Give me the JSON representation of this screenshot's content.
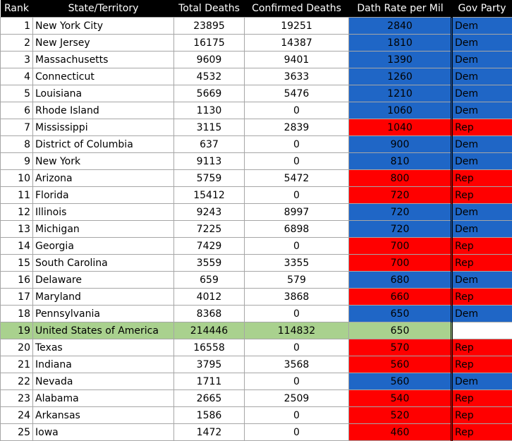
{
  "headers": [
    "Rank",
    "State/Territory",
    "Total Deaths",
    "Confirmed Deaths",
    "Dath Rate per Mil",
    "Gov Party"
  ],
  "rows": [
    {
      "rank": "1",
      "state": "New York City",
      "total": "23895",
      "confirmed": "19251",
      "rate": "2840",
      "party": "Dem"
    },
    {
      "rank": "2",
      "state": "New Jersey",
      "total": "16175",
      "confirmed": "14387",
      "rate": "1810",
      "party": "Dem"
    },
    {
      "rank": "3",
      "state": "Massachusetts",
      "total": "9609",
      "confirmed": "9401",
      "rate": "1390",
      "party": "Dem"
    },
    {
      "rank": "4",
      "state": "Connecticut",
      "total": "4532",
      "confirmed": "3633",
      "rate": "1260",
      "party": "Dem"
    },
    {
      "rank": "5",
      "state": "Louisiana",
      "total": "5669",
      "confirmed": "5476",
      "rate": "1210",
      "party": "Dem"
    },
    {
      "rank": "6",
      "state": "Rhode Island",
      "total": "1130",
      "confirmed": "0",
      "rate": "1060",
      "party": "Dem"
    },
    {
      "rank": "7",
      "state": "Mississippi",
      "total": "3115",
      "confirmed": "2839",
      "rate": "1040",
      "party": "Rep"
    },
    {
      "rank": "8",
      "state": "District of Columbia",
      "total": "637",
      "confirmed": "0",
      "rate": "900",
      "party": "Dem"
    },
    {
      "rank": "9",
      "state": "New York",
      "total": "9113",
      "confirmed": "0",
      "rate": "810",
      "party": "Dem"
    },
    {
      "rank": "10",
      "state": "Arizona",
      "total": "5759",
      "confirmed": "5472",
      "rate": "800",
      "party": "Rep"
    },
    {
      "rank": "11",
      "state": "Florida",
      "total": "15412",
      "confirmed": "0",
      "rate": "720",
      "party": "Rep"
    },
    {
      "rank": "12",
      "state": "Illinois",
      "total": "9243",
      "confirmed": "8997",
      "rate": "720",
      "party": "Dem"
    },
    {
      "rank": "13",
      "state": "Michigan",
      "total": "7225",
      "confirmed": "6898",
      "rate": "720",
      "party": "Dem"
    },
    {
      "rank": "14",
      "state": "Georgia",
      "total": "7429",
      "confirmed": "0",
      "rate": "700",
      "party": "Rep"
    },
    {
      "rank": "15",
      "state": "South Carolina",
      "total": "3559",
      "confirmed": "3355",
      "rate": "700",
      "party": "Rep"
    },
    {
      "rank": "16",
      "state": "Delaware",
      "total": "659",
      "confirmed": "579",
      "rate": "680",
      "party": "Dem"
    },
    {
      "rank": "17",
      "state": "Maryland",
      "total": "4012",
      "confirmed": "3868",
      "rate": "660",
      "party": "Rep"
    },
    {
      "rank": "18",
      "state": "Pennsylvania",
      "total": "8368",
      "confirmed": "0",
      "rate": "650",
      "party": "Dem"
    },
    {
      "rank": "19",
      "state": "United States of America",
      "total": "214446",
      "confirmed": "114832",
      "rate": "650",
      "party": "",
      "highlight": true
    },
    {
      "rank": "20",
      "state": "Texas",
      "total": "16558",
      "confirmed": "0",
      "rate": "570",
      "party": "Rep"
    },
    {
      "rank": "21",
      "state": "Indiana",
      "total": "3795",
      "confirmed": "3568",
      "rate": "560",
      "party": "Rep"
    },
    {
      "rank": "22",
      "state": "Nevada",
      "total": "1711",
      "confirmed": "0",
      "rate": "560",
      "party": "Dem"
    },
    {
      "rank": "23",
      "state": "Alabama",
      "total": "2665",
      "confirmed": "2509",
      "rate": "540",
      "party": "Rep"
    },
    {
      "rank": "24",
      "state": "Arkansas",
      "total": "1586",
      "confirmed": "0",
      "rate": "520",
      "party": "Rep"
    },
    {
      "rank": "25",
      "state": "Iowa",
      "total": "1472",
      "confirmed": "0",
      "rate": "460",
      "party": "Rep"
    }
  ],
  "colors": {
    "dem": "#1f66c6",
    "rep": "#ff0000",
    "us_highlight": "#a9d18e",
    "header_bg": "#000000"
  }
}
